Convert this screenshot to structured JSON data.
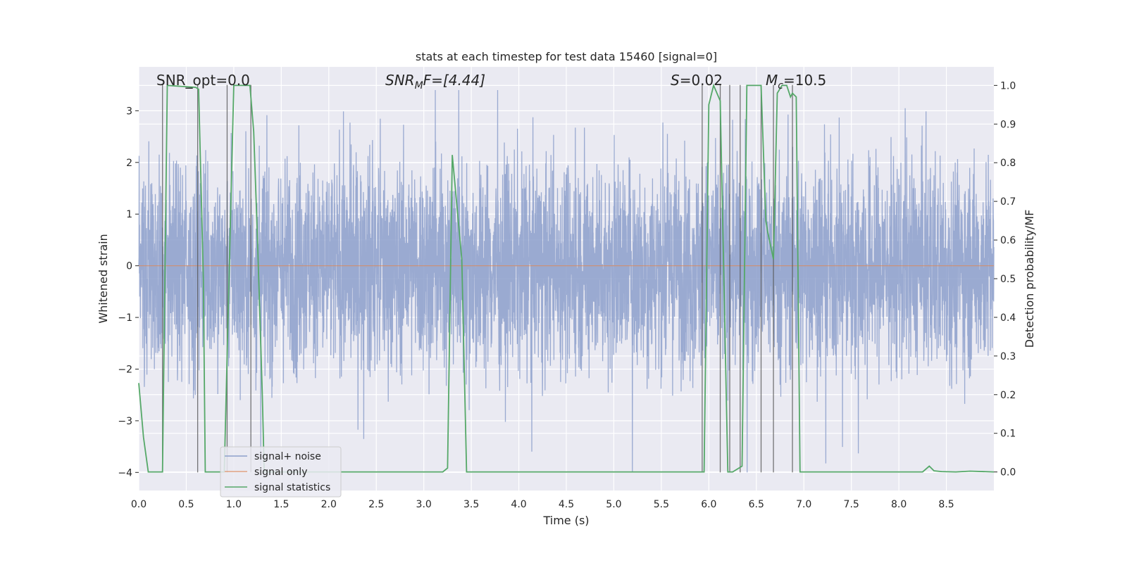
{
  "chart_data": {
    "type": "line",
    "title": "stats at each timestep for test data 15460 [signal=0]",
    "xlabel": "Time (s)",
    "ylabel_left": "Whitened strain",
    "ylabel_right": "Detection probability/MF",
    "xlim": [
      0.0,
      9.0
    ],
    "ylim_left": [
      -4.35,
      3.85
    ],
    "ylim_right": [
      -0.048,
      1.048
    ],
    "x_ticks": [
      "0.0",
      "0.5",
      "1.0",
      "1.5",
      "2.0",
      "2.5",
      "3.0",
      "3.5",
      "4.0",
      "4.5",
      "5.0",
      "5.5",
      "6.0",
      "6.5",
      "7.0",
      "7.5",
      "8.0",
      "8.5"
    ],
    "y_ticks_left": [
      "3",
      "2",
      "1",
      "0",
      "−1",
      "−2",
      "−3",
      "−4"
    ],
    "y_ticks_right": [
      "1.0",
      "0.9",
      "0.8",
      "0.7",
      "0.6",
      "0.5",
      "0.4",
      "0.3",
      "0.2",
      "0.1",
      "0.0"
    ],
    "grid": true,
    "annotations": {
      "snr_opt": "SNR_opt=0.0",
      "snr_mf_main": "SNR",
      "snr_mf_sub": "M",
      "snr_mf_tail": "F=[4.44]",
      "s_main": "S",
      "s_tail": "=0.02",
      "mc_main": "M",
      "mc_sub": "c",
      "mc_tail": "=10.5"
    },
    "legend": {
      "position": "lower-left",
      "entries": [
        "signal+ noise",
        "signal only",
        "signal statistics"
      ]
    },
    "series": [
      {
        "name": "signal+ noise",
        "axis": "left",
        "color": "#8c9fcb",
        "description": "whitened strain noise, roughly between -2.6 and 2.8 with spikes to about -4 and 3.4"
      },
      {
        "name": "signal only",
        "axis": "left",
        "color": "#dd8452",
        "y_constant": 0.0
      },
      {
        "name": "signal statistics",
        "axis": "right",
        "color": "#55a868",
        "x": [
          0.0,
          0.05,
          0.1,
          0.25,
          0.3,
          0.6,
          0.63,
          0.68,
          0.7,
          0.75,
          0.9,
          1.0,
          1.17,
          1.21,
          1.25,
          1.3,
          1.32,
          3.2,
          3.25,
          3.3,
          3.4,
          3.45,
          5.9,
          5.95,
          6.0,
          6.05,
          6.12,
          6.2,
          6.25,
          6.35,
          6.4,
          6.55,
          6.6,
          6.62,
          6.68,
          6.72,
          6.77,
          6.82,
          6.86,
          6.88,
          6.92,
          6.96,
          8.25,
          8.32,
          8.37,
          8.45,
          8.6,
          8.75,
          9.0
        ],
        "y": [
          0.23,
          0.09,
          0.0,
          0.0,
          1.0,
          0.995,
          0.99,
          0.5,
          0.0,
          0.0,
          0.0,
          1.0,
          1.0,
          0.88,
          0.6,
          0.2,
          0.0,
          0.0,
          0.01,
          0.82,
          0.55,
          0.0,
          0.0,
          0.0,
          0.95,
          1.0,
          0.96,
          0.0,
          0.0,
          0.015,
          1.0,
          1.0,
          0.65,
          0.62,
          0.55,
          0.98,
          1.0,
          1.0,
          0.97,
          0.98,
          0.97,
          0.0,
          0.0,
          0.015,
          0.003,
          0.001,
          0.0,
          0.002,
          0.0
        ]
      }
    ],
    "vertical_markers_s": [
      0.25,
      0.62,
      0.93,
      1.18,
      5.93,
      6.12,
      6.22,
      6.33,
      6.55,
      6.68,
      6.88
    ]
  }
}
